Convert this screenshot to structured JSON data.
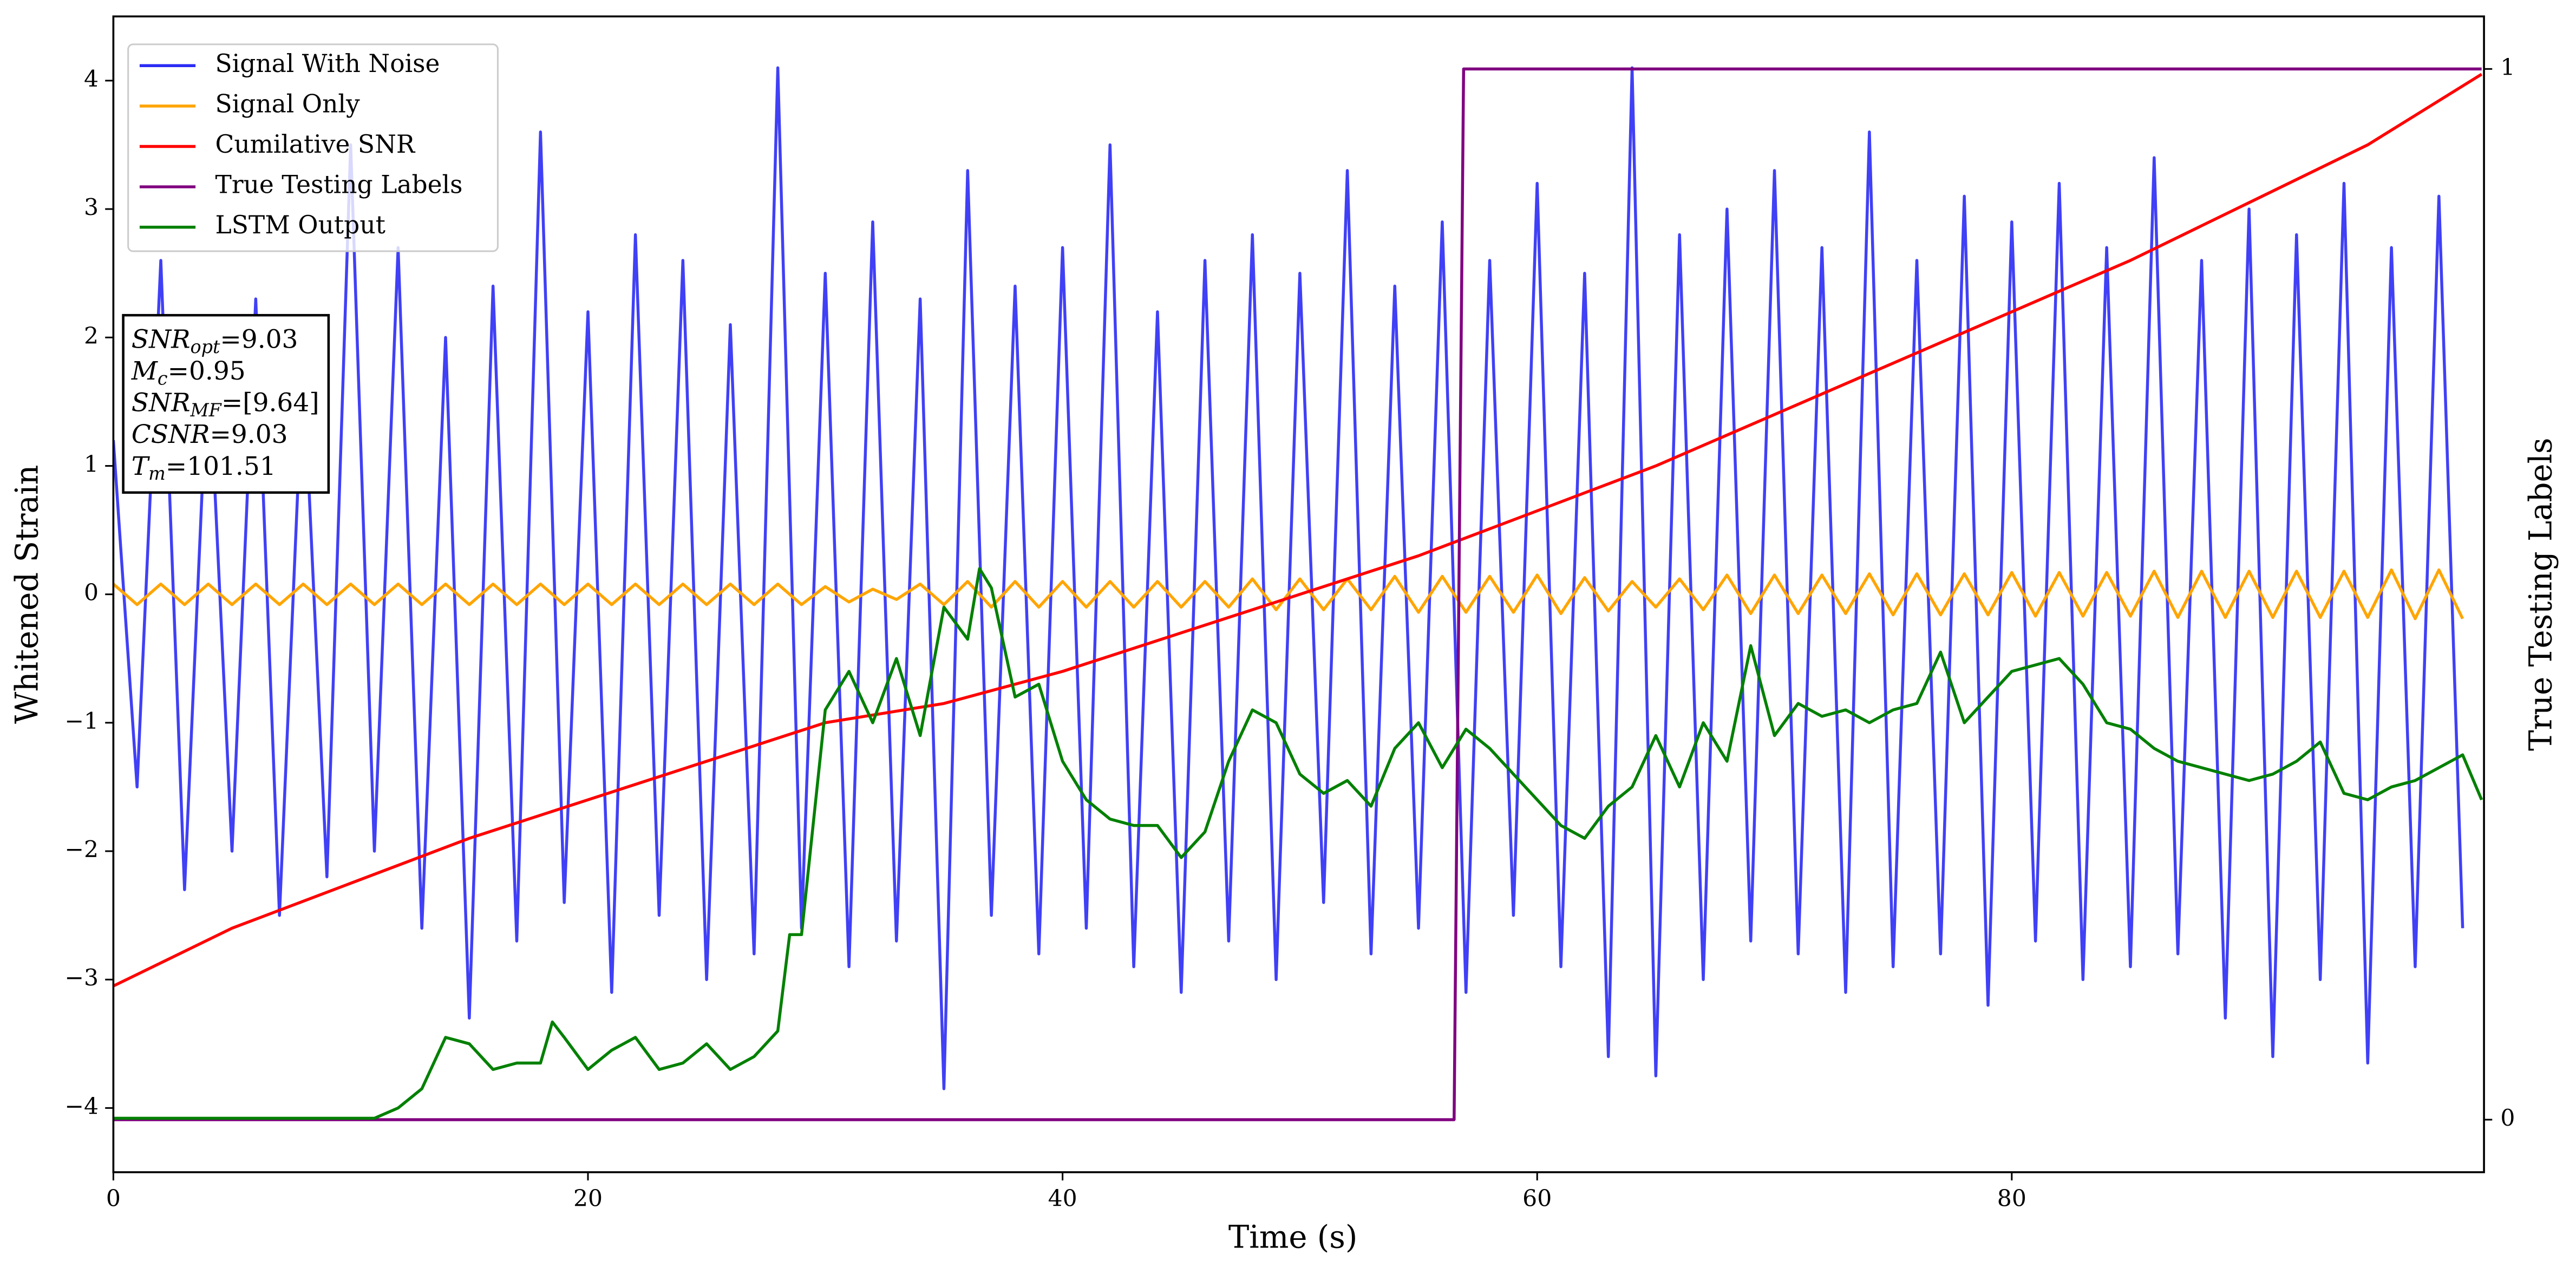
{
  "chart_data": {
    "type": "line",
    "xlabel": "Time (s)",
    "ylabel": "Whitened Strain",
    "y2label": "True Testing Labels",
    "xlim": [
      0,
      99.9
    ],
    "ylim": [
      -4.5,
      4.5
    ],
    "y2lim": [
      -0.05,
      1.05
    ],
    "xticks": [
      0,
      20,
      40,
      60,
      80
    ],
    "yticks": [
      {
        "value": -4,
        "label": "−4"
      },
      {
        "value": -3,
        "label": "−3"
      },
      {
        "value": -2,
        "label": "−2"
      },
      {
        "value": -1,
        "label": "−1"
      },
      0,
      1,
      2,
      3,
      4
    ],
    "y2ticks": [
      0,
      1
    ],
    "legend": "upper left",
    "series": [
      {
        "name": "Signal With Noise",
        "color": "#2b2bf5",
        "x": [
          0,
          1,
          2,
          3,
          4,
          5,
          6,
          7,
          8,
          9,
          10,
          11,
          12,
          13,
          14,
          15,
          16,
          17,
          18,
          19,
          20,
          21,
          22,
          23,
          24,
          25,
          26,
          27,
          28,
          29,
          30,
          31,
          32,
          33,
          34,
          35,
          36,
          37,
          38,
          39,
          40,
          41,
          42,
          43,
          44,
          45,
          46,
          47,
          48,
          49,
          50,
          51,
          52,
          53,
          54,
          55,
          56,
          57,
          58,
          59,
          60,
          61,
          62,
          63,
          64,
          65,
          66,
          67,
          68,
          69,
          70,
          71,
          72,
          73,
          74,
          75,
          76,
          77,
          78,
          79,
          80,
          81,
          82,
          83,
          84,
          85,
          86,
          87,
          88,
          89,
          90,
          91,
          92,
          93,
          94,
          95,
          96,
          97,
          98,
          99
        ],
        "values": [
          1.2,
          -1.5,
          2.6,
          -2.3,
          1.9,
          -2.0,
          2.3,
          -2.5,
          1.8,
          -2.2,
          3.5,
          -2.0,
          2.7,
          -2.6,
          2.0,
          -3.3,
          2.4,
          -2.7,
          3.6,
          -2.4,
          2.2,
          -3.1,
          2.8,
          -2.5,
          2.6,
          -3.0,
          2.1,
          -2.8,
          4.1,
          -2.6,
          2.5,
          -2.9,
          2.9,
          -2.7,
          2.3,
          -3.85,
          3.3,
          -2.5,
          2.4,
          -2.8,
          2.7,
          -2.6,
          3.5,
          -2.9,
          2.2,
          -3.1,
          2.6,
          -2.7,
          2.8,
          -3.0,
          2.5,
          -2.4,
          3.3,
          -2.8,
          2.4,
          -2.6,
          2.9,
          -3.1,
          2.6,
          -2.5,
          3.2,
          -2.9,
          2.5,
          -3.6,
          4.1,
          -3.75,
          2.8,
          -3.0,
          3.0,
          -2.7,
          3.3,
          -2.8,
          2.7,
          -3.1,
          3.6,
          -2.9,
          2.6,
          -2.8,
          3.1,
          -3.2,
          2.9,
          -2.7,
          3.2,
          -3.0,
          2.7,
          -2.9,
          3.4,
          -2.8,
          2.6,
          -3.3,
          3.0,
          -3.6,
          2.8,
          -3.0,
          3.2,
          -3.65,
          2.7,
          -2.9,
          3.1,
          -2.6
        ]
      },
      {
        "name": "Signal Only",
        "color": "#ffa500",
        "x": [
          0,
          1,
          2,
          3,
          4,
          5,
          6,
          7,
          8,
          9,
          10,
          11,
          12,
          13,
          14,
          15,
          16,
          17,
          18,
          19,
          20,
          21,
          22,
          23,
          24,
          25,
          26,
          27,
          28,
          29,
          30,
          31,
          32,
          33,
          34,
          35,
          36,
          37,
          38,
          39,
          40,
          41,
          42,
          43,
          44,
          45,
          46,
          47,
          48,
          49,
          50,
          51,
          52,
          53,
          54,
          55,
          56,
          57,
          58,
          59,
          60,
          61,
          62,
          63,
          64,
          65,
          66,
          67,
          68,
          69,
          70,
          71,
          72,
          73,
          74,
          75,
          76,
          77,
          78,
          79,
          80,
          81,
          82,
          83,
          84,
          85,
          86,
          87,
          88,
          89,
          90,
          91,
          92,
          93,
          94,
          95,
          96,
          97,
          98,
          99
        ],
        "values": [
          0.08,
          -0.08,
          0.08,
          -0.08,
          0.08,
          -0.08,
          0.08,
          -0.08,
          0.08,
          -0.08,
          0.08,
          -0.08,
          0.08,
          -0.08,
          0.08,
          -0.08,
          0.08,
          -0.08,
          0.08,
          -0.08,
          0.08,
          -0.08,
          0.08,
          -0.08,
          0.08,
          -0.08,
          0.08,
          -0.08,
          0.08,
          -0.08,
          0.06,
          -0.06,
          0.04,
          -0.04,
          0.08,
          -0.08,
          0.1,
          -0.1,
          0.1,
          -0.1,
          0.1,
          -0.1,
          0.1,
          -0.1,
          0.1,
          -0.1,
          0.1,
          -0.1,
          0.12,
          -0.12,
          0.12,
          -0.12,
          0.12,
          -0.12,
          0.14,
          -0.14,
          0.14,
          -0.14,
          0.14,
          -0.14,
          0.15,
          -0.15,
          0.13,
          -0.13,
          0.1,
          -0.1,
          0.12,
          -0.12,
          0.15,
          -0.15,
          0.15,
          -0.15,
          0.15,
          -0.15,
          0.16,
          -0.16,
          0.16,
          -0.16,
          0.16,
          -0.16,
          0.17,
          -0.17,
          0.17,
          -0.17,
          0.17,
          -0.17,
          0.18,
          -0.18,
          0.18,
          -0.18,
          0.18,
          -0.18,
          0.18,
          -0.18,
          0.18,
          -0.18,
          0.19,
          -0.19,
          0.19,
          -0.19
        ]
      },
      {
        "name": "Cumilative SNR",
        "color": "#ff0000",
        "x": [
          0,
          5,
          10,
          15,
          20,
          25,
          30,
          35,
          40,
          45,
          50,
          55,
          60,
          65,
          70,
          75,
          80,
          85,
          90,
          95,
          99.8
        ],
        "values": [
          -3.05,
          -2.6,
          -2.25,
          -1.9,
          -1.6,
          -1.3,
          -1.0,
          -0.85,
          -0.6,
          -0.3,
          0.0,
          0.3,
          0.65,
          1.0,
          1.4,
          1.8,
          2.2,
          2.6,
          3.05,
          3.5,
          4.05
        ]
      },
      {
        "name": "True Testing Labels",
        "color": "#800080",
        "axis": "y2",
        "x": [
          0,
          56.5,
          56.9,
          99.8
        ],
        "values": [
          0,
          0,
          1,
          1
        ]
      },
      {
        "name": "LSTM Output",
        "color": "#008000",
        "x": [
          0,
          11,
          12,
          13,
          14,
          15,
          16,
          17,
          18,
          18.5,
          19,
          20,
          21,
          22,
          23,
          24,
          25,
          26,
          27,
          28,
          28.5,
          29,
          30,
          31,
          32,
          33,
          34,
          35,
          36,
          36.5,
          37,
          38,
          39,
          40,
          41,
          42,
          43,
          44,
          45,
          46,
          47,
          48,
          49,
          50,
          51,
          52,
          53,
          54,
          55,
          56,
          57,
          58,
          59,
          60,
          61,
          62,
          63,
          64,
          65,
          66,
          67,
          68,
          69,
          70,
          71,
          72,
          73,
          74,
          75,
          76,
          77,
          78,
          79,
          80,
          81,
          82,
          83,
          84,
          85,
          86,
          87,
          88,
          89,
          90,
          91,
          92,
          93,
          94,
          95,
          96,
          97,
          98,
          99,
          99.8
        ],
        "values": [
          -4.08,
          -4.08,
          -4.0,
          -3.85,
          -3.45,
          -3.5,
          -3.7,
          -3.65,
          -3.65,
          -3.33,
          -3.45,
          -3.7,
          -3.55,
          -3.45,
          -3.7,
          -3.65,
          -3.5,
          -3.7,
          -3.6,
          -3.4,
          -2.65,
          -2.65,
          -0.9,
          -0.6,
          -1.0,
          -0.5,
          -1.1,
          -0.1,
          -0.35,
          0.2,
          0.05,
          -0.8,
          -0.7,
          -1.3,
          -1.6,
          -1.75,
          -1.8,
          -1.8,
          -2.05,
          -1.85,
          -1.3,
          -0.9,
          -1.0,
          -1.4,
          -1.55,
          -1.45,
          -1.65,
          -1.2,
          -1.0,
          -1.35,
          -1.05,
          -1.2,
          -1.4,
          -1.6,
          -1.8,
          -1.9,
          -1.65,
          -1.5,
          -1.1,
          -1.5,
          -1.0,
          -1.3,
          -0.4,
          -1.1,
          -0.85,
          -0.95,
          -0.9,
          -1.0,
          -0.9,
          -0.85,
          -0.45,
          -1.0,
          -0.8,
          -0.6,
          -0.55,
          -0.5,
          -0.7,
          -1.0,
          -1.05,
          -1.2,
          -1.3,
          -1.35,
          -1.4,
          -1.45,
          -1.4,
          -1.3,
          -1.15,
          -1.55,
          -1.6,
          -1.5,
          -1.45,
          -1.35,
          -1.25,
          -1.6
        ]
      }
    ],
    "annotation": [
      {
        "name": "SNR",
        "sub": "opt",
        "text": "=9.03"
      },
      {
        "name": "M",
        "sub": "c",
        "text": "=0.95"
      },
      {
        "name": "SNR",
        "sub": "MF",
        "text": "=[9.64]"
      },
      {
        "name": "CSNR",
        "text": "=9.03"
      },
      {
        "name": "T",
        "sub": "m",
        "text": "=101.51"
      }
    ]
  }
}
